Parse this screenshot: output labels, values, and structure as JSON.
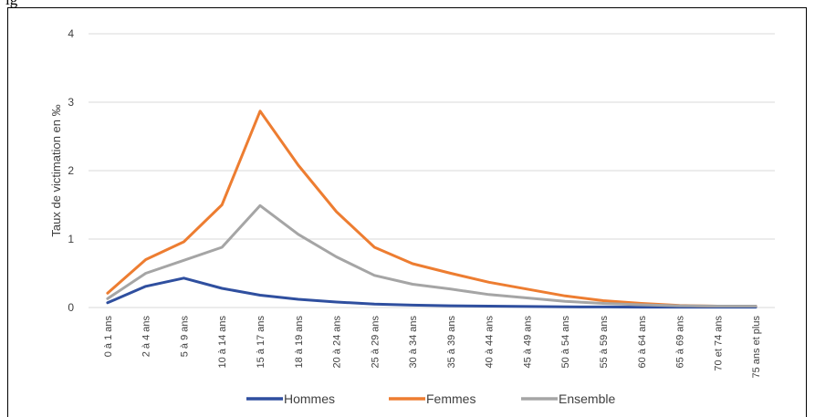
{
  "page_title_fragment": "ig",
  "chart_data": {
    "type": "line",
    "categories": [
      "0 à 1 ans",
      "2 à 4 ans",
      "5 à 9 ans",
      "10 à 14 ans",
      "15 à 17 ans",
      "18 à 19 ans",
      "20 à 24 ans",
      "25 à 29 ans",
      "30 à 34 ans",
      "35 à 39 ans",
      "40 à 44 ans",
      "45 à 49 ans",
      "50 à 54 ans",
      "55 à 59 ans",
      "60 à 64 ans",
      "65 à 69 ans",
      "70 et 74 ans",
      "75 ans et plus"
    ],
    "series": [
      {
        "name": "Hommes",
        "color": "#2F4F9F",
        "values": [
          0.07,
          0.31,
          0.43,
          0.28,
          0.18,
          0.12,
          0.08,
          0.05,
          0.035,
          0.025,
          0.02,
          0.015,
          0.01,
          0.008,
          0.006,
          0.005,
          0.005,
          0.005
        ]
      },
      {
        "name": "Femmes",
        "color": "#ED7D31",
        "values": [
          0.21,
          0.7,
          0.96,
          1.5,
          2.87,
          2.08,
          1.4,
          0.88,
          0.64,
          0.5,
          0.37,
          0.27,
          0.17,
          0.1,
          0.06,
          0.03,
          0.02,
          0.02
        ]
      },
      {
        "name": "Ensemble",
        "color": "#A5A5A5",
        "values": [
          0.13,
          0.5,
          0.69,
          0.88,
          1.49,
          1.07,
          0.74,
          0.47,
          0.34,
          0.27,
          0.19,
          0.14,
          0.09,
          0.06,
          0.04,
          0.025,
          0.02,
          0.02
        ]
      }
    ],
    "ylabel": "Taux de victimation en  ‰",
    "xlabel": "",
    "ylim": [
      0,
      4
    ],
    "yticks": [
      "0",
      "1",
      "2",
      "3",
      "4"
    ],
    "grid": true,
    "legend": "bottom"
  }
}
